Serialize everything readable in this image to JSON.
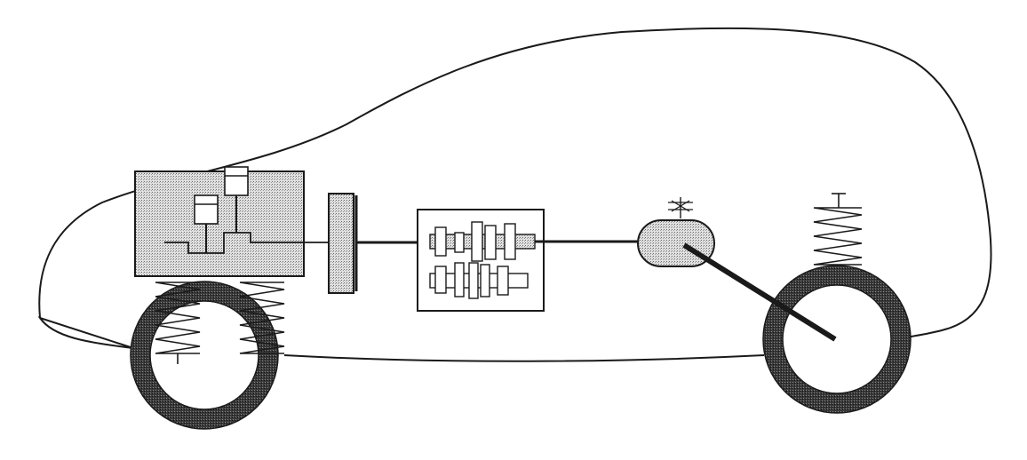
{
  "figure": {
    "background": "#ffffff",
    "line_color": "#1a1a1a",
    "stipple_light": "#bdbdbd",
    "stipple_dark": "#2a2a2a",
    "components": [
      "car-body-outline",
      "engine-block",
      "clutch-disc",
      "gearbox",
      "differential",
      "front-wheel",
      "rear-wheel",
      "front-suspension-springs",
      "rear-suspension-spring",
      "drive-shaft"
    ]
  }
}
